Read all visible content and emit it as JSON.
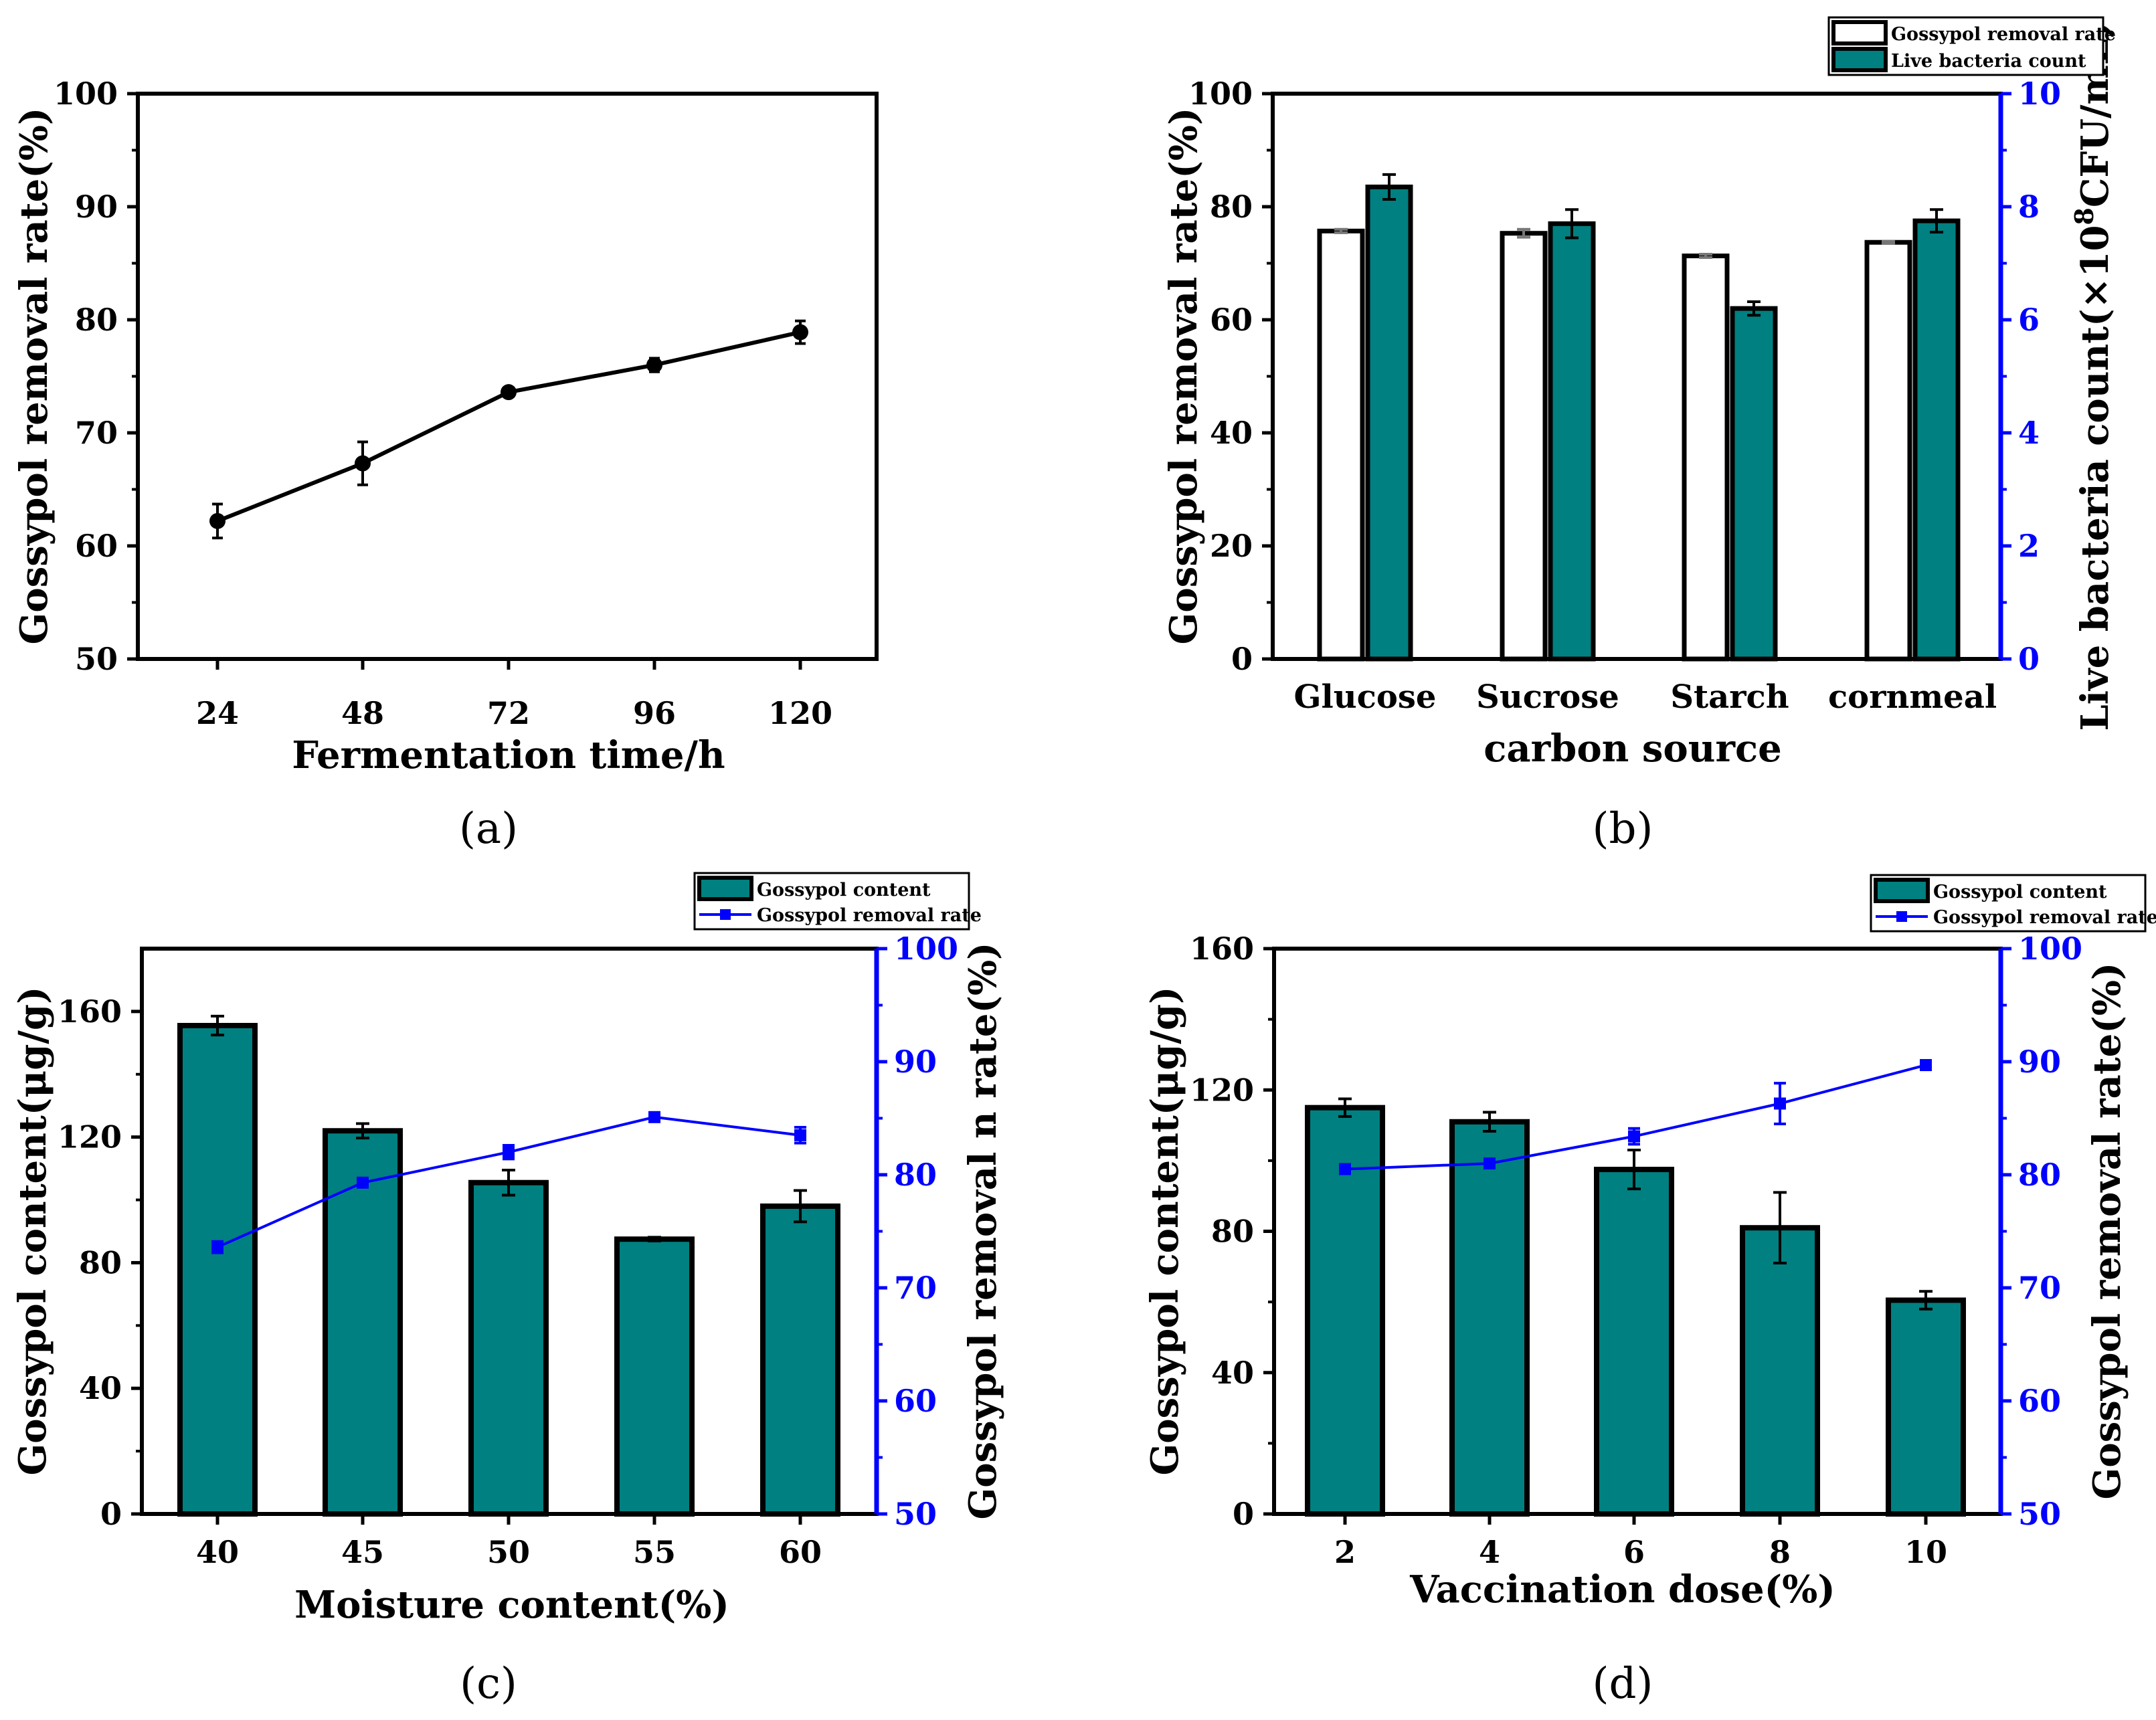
{
  "colors": {
    "axis": "#000000",
    "bar_teal": "#008080",
    "bar_white": "#ffffff",
    "right_axis": "#0000ff",
    "line": "#0000ff"
  },
  "chart_data": [
    {
      "id": "a",
      "panel_label": "(a)",
      "type": "line",
      "xlabel": "Fermentation time/h",
      "ylabel": "Gossypol removal rate(%)",
      "categories": [
        "24",
        "48",
        "72",
        "96",
        "120"
      ],
      "values": [
        62.2,
        67.3,
        73.6,
        76.0,
        78.9
      ],
      "errors": [
        1.5,
        1.9,
        0.4,
        0.6,
        1.0
      ],
      "ylim": [
        50,
        100
      ],
      "yticks": [
        50,
        60,
        70,
        80,
        90,
        100
      ]
    },
    {
      "id": "b",
      "panel_label": "(b)",
      "type": "bar",
      "xlabel": "carbon source",
      "ylabel": "Gossypol removal rate(%)",
      "y2label_parts": [
        "Live bacteria count(×10",
        "8",
        "CFU/mL)"
      ],
      "categories": [
        "Glucose",
        "Sucrose",
        "Starch",
        "cornmeal"
      ],
      "legend": [
        "Gossypol removal rate",
        "Live bacteria count"
      ],
      "series": [
        {
          "name": "Gossypol removal rate",
          "axis": "left",
          "values": [
            75.7,
            75.3,
            71.3,
            73.7
          ],
          "errors": [
            0.3,
            0.7,
            0.3,
            0.2
          ]
        },
        {
          "name": "Live bacteria count",
          "axis": "right",
          "values": [
            8.35,
            7.7,
            6.2,
            7.75
          ],
          "errors": [
            0.22,
            0.25,
            0.12,
            0.2
          ]
        }
      ],
      "ylim": [
        0,
        100
      ],
      "yticks": [
        0,
        20,
        40,
        60,
        80,
        100
      ],
      "y2lim": [
        0,
        10
      ],
      "y2ticks": [
        0,
        2,
        4,
        6,
        8,
        10
      ]
    },
    {
      "id": "c",
      "panel_label": "(c)",
      "type": "bar+line",
      "xlabel": "Moisture content(%)",
      "ylabel": "Gossypol content(μg/g)",
      "y2label": "Gossypol removal n rate(%)",
      "categories": [
        "40",
        "45",
        "50",
        "55",
        "60"
      ],
      "legend": [
        "Gossypol content",
        "Gossypol removal rate"
      ],
      "bars": {
        "name": "Gossypol content",
        "values": [
          155.5,
          122,
          105.5,
          87.5,
          98
        ],
        "errors": [
          3,
          2.3,
          4,
          0.6,
          5
        ]
      },
      "line": {
        "name": "Gossypol removal rate",
        "values": [
          73.6,
          79.3,
          82.0,
          85.1,
          83.5
        ],
        "errors": [
          0.5,
          0.3,
          0.6,
          0.2,
          0.7
        ]
      },
      "ylim": [
        0,
        180
      ],
      "yticks": [
        0,
        40,
        80,
        120,
        160
      ],
      "y2lim": [
        50,
        100
      ],
      "y2ticks": [
        50,
        60,
        70,
        80,
        90,
        100
      ]
    },
    {
      "id": "d",
      "panel_label": "(d)",
      "type": "bar+line",
      "xlabel": "Vaccination dose(%)",
      "ylabel": "Gossypol content(μg/g)",
      "y2label": "Gossypol removal rate(%)",
      "categories": [
        "2",
        "4",
        "6",
        "8",
        "10"
      ],
      "legend": [
        "Gossypol content",
        "Gossypol removal rate"
      ],
      "bars": {
        "name": "Gossypol content",
        "values": [
          115,
          111,
          97.5,
          81,
          60.5
        ],
        "errors": [
          2.5,
          2.7,
          5.5,
          10,
          2.5
        ]
      },
      "line": {
        "name": "Gossypol removal rate",
        "values": [
          80.5,
          81.0,
          83.4,
          86.3,
          89.7
        ],
        "errors": [
          0.4,
          0.4,
          0.7,
          1.8,
          0.4
        ]
      },
      "ylim": [
        0,
        160
      ],
      "yticks": [
        0,
        40,
        80,
        120,
        160
      ],
      "y2lim": [
        50,
        100
      ],
      "y2ticks": [
        50,
        60,
        70,
        80,
        90,
        100
      ]
    }
  ]
}
